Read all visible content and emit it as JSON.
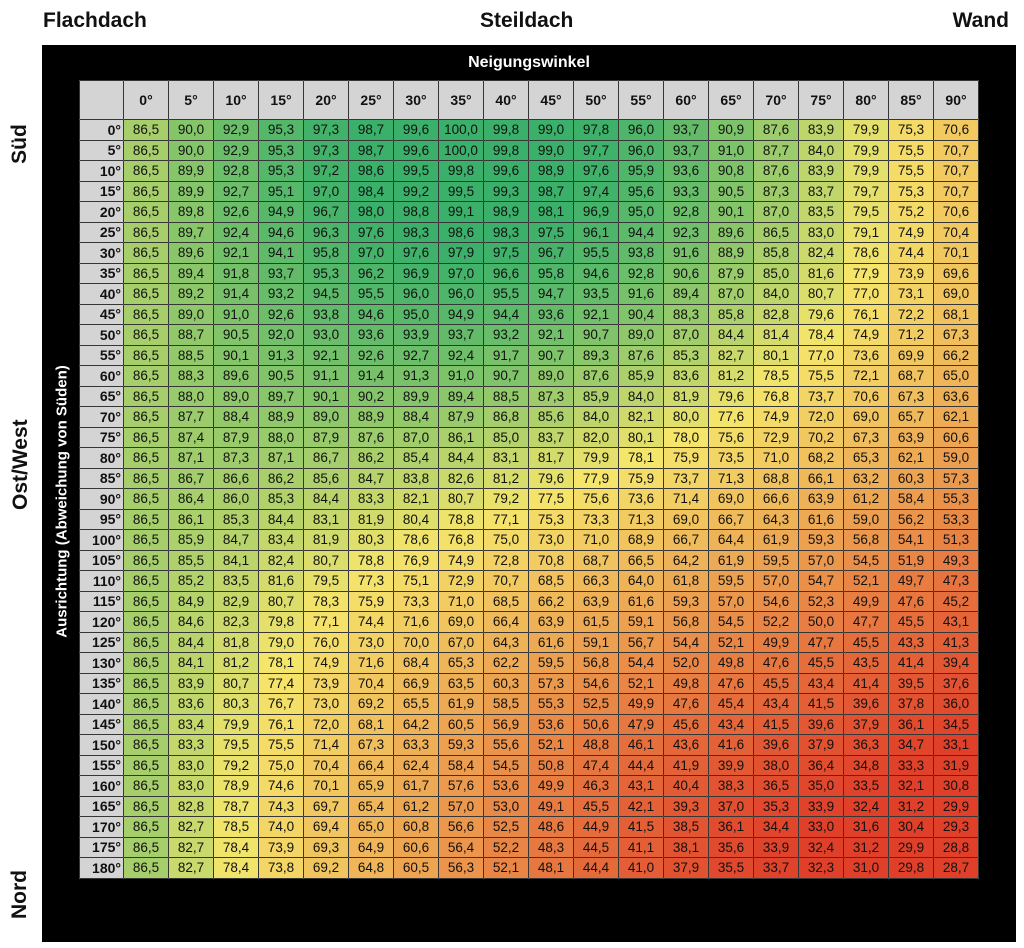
{
  "labels": {
    "flachdach": "Flachdach",
    "steildach": "Steildach",
    "wand": "Wand",
    "sued": "Süd",
    "ostwest": "Ost/West",
    "nord": "Nord",
    "header": "Neigungswinkel",
    "side": "Ausrichtung (Abweichung von Süden)"
  },
  "colors": {
    "high": "#3bb06a",
    "mid": "#f5e56b",
    "low": "#e0402a"
  },
  "chart_data": {
    "type": "heatmap",
    "columns": [
      "0°",
      "5°",
      "10°",
      "15°",
      "20°",
      "25°",
      "30°",
      "35°",
      "40°",
      "45°",
      "50°",
      "55°",
      "60°",
      "65°",
      "70°",
      "75°",
      "80°",
      "85°",
      "90°"
    ],
    "rows": [
      "0°",
      "5°",
      "10°",
      "15°",
      "20°",
      "25°",
      "30°",
      "35°",
      "40°",
      "45°",
      "50°",
      "55°",
      "60°",
      "65°",
      "70°",
      "75°",
      "80°",
      "85°",
      "90°",
      "95°",
      "100°",
      "105°",
      "110°",
      "115°",
      "120°",
      "125°",
      "130°",
      "135°",
      "140°",
      "145°",
      "150°",
      "155°",
      "160°",
      "165°",
      "170°",
      "175°",
      "180°"
    ],
    "values": [
      [
        "86,5",
        "90,0",
        "92,9",
        "95,3",
        "97,3",
        "98,7",
        "99,6",
        "100,0",
        "99,8",
        "99,0",
        "97,8",
        "96,0",
        "93,7",
        "90,9",
        "87,6",
        "83,9",
        "79,9",
        "75,3",
        "70,6"
      ],
      [
        "86,5",
        "90,0",
        "92,9",
        "95,3",
        "97,3",
        "98,7",
        "99,6",
        "100,0",
        "99,8",
        "99,0",
        "97,7",
        "96,0",
        "93,7",
        "91,0",
        "87,7",
        "84,0",
        "79,9",
        "75,5",
        "70,7"
      ],
      [
        "86,5",
        "89,9",
        "92,8",
        "95,3",
        "97,2",
        "98,6",
        "99,5",
        "99,8",
        "99,6",
        "98,9",
        "97,6",
        "95,9",
        "93,6",
        "90,8",
        "87,6",
        "83,9",
        "79,9",
        "75,5",
        "70,7"
      ],
      [
        "86,5",
        "89,9",
        "92,7",
        "95,1",
        "97,0",
        "98,4",
        "99,2",
        "99,5",
        "99,3",
        "98,7",
        "97,4",
        "95,6",
        "93,3",
        "90,5",
        "87,3",
        "83,7",
        "79,7",
        "75,3",
        "70,7"
      ],
      [
        "86,5",
        "89,8",
        "92,6",
        "94,9",
        "96,7",
        "98,0",
        "98,8",
        "99,1",
        "98,9",
        "98,1",
        "96,9",
        "95,0",
        "92,8",
        "90,1",
        "87,0",
        "83,5",
        "79,5",
        "75,2",
        "70,6"
      ],
      [
        "86,5",
        "89,7",
        "92,4",
        "94,6",
        "96,3",
        "97,6",
        "98,3",
        "98,6",
        "98,3",
        "97,5",
        "96,1",
        "94,4",
        "92,3",
        "89,6",
        "86,5",
        "83,0",
        "79,1",
        "74,9",
        "70,4"
      ],
      [
        "86,5",
        "89,6",
        "92,1",
        "94,1",
        "95,8",
        "97,0",
        "97,6",
        "97,9",
        "97,5",
        "96,7",
        "95,5",
        "93,8",
        "91,6",
        "88,9",
        "85,8",
        "82,4",
        "78,6",
        "74,4",
        "70,1"
      ],
      [
        "86,5",
        "89,4",
        "91,8",
        "93,7",
        "95,3",
        "96,2",
        "96,9",
        "97,0",
        "96,6",
        "95,8",
        "94,6",
        "92,8",
        "90,6",
        "87,9",
        "85,0",
        "81,6",
        "77,9",
        "73,9",
        "69,6"
      ],
      [
        "86,5",
        "89,2",
        "91,4",
        "93,2",
        "94,5",
        "95,5",
        "96,0",
        "96,0",
        "95,5",
        "94,7",
        "93,5",
        "91,6",
        "89,4",
        "87,0",
        "84,0",
        "80,7",
        "77,0",
        "73,1",
        "69,0"
      ],
      [
        "86,5",
        "89,0",
        "91,0",
        "92,6",
        "93,8",
        "94,6",
        "95,0",
        "94,9",
        "94,4",
        "93,6",
        "92,1",
        "90,4",
        "88,3",
        "85,8",
        "82,8",
        "79,6",
        "76,1",
        "72,2",
        "68,1"
      ],
      [
        "86,5",
        "88,7",
        "90,5",
        "92,0",
        "93,0",
        "93,6",
        "93,9",
        "93,7",
        "93,2",
        "92,1",
        "90,7",
        "89,0",
        "87,0",
        "84,4",
        "81,4",
        "78,4",
        "74,9",
        "71,2",
        "67,3"
      ],
      [
        "86,5",
        "88,5",
        "90,1",
        "91,3",
        "92,1",
        "92,6",
        "92,7",
        "92,4",
        "91,7",
        "90,7",
        "89,3",
        "87,6",
        "85,3",
        "82,7",
        "80,1",
        "77,0",
        "73,6",
        "69,9",
        "66,2"
      ],
      [
        "86,5",
        "88,3",
        "89,6",
        "90,5",
        "91,1",
        "91,4",
        "91,3",
        "91,0",
        "90,7",
        "89,0",
        "87,6",
        "85,9",
        "83,6",
        "81,2",
        "78,5",
        "75,5",
        "72,1",
        "68,7",
        "65,0"
      ],
      [
        "86,5",
        "88,0",
        "89,0",
        "89,7",
        "90,1",
        "90,2",
        "89,9",
        "89,4",
        "88,5",
        "87,3",
        "85,9",
        "84,0",
        "81,9",
        "79,6",
        "76,8",
        "73,7",
        "70,6",
        "67,3",
        "63,6"
      ],
      [
        "86,5",
        "87,7",
        "88,4",
        "88,9",
        "89,0",
        "88,9",
        "88,4",
        "87,9",
        "86,8",
        "85,6",
        "84,0",
        "82,1",
        "80,0",
        "77,6",
        "74,9",
        "72,0",
        "69,0",
        "65,7",
        "62,1"
      ],
      [
        "86,5",
        "87,4",
        "87,9",
        "88,0",
        "87,9",
        "87,6",
        "87,0",
        "86,1",
        "85,0",
        "83,7",
        "82,0",
        "80,1",
        "78,0",
        "75,6",
        "72,9",
        "70,2",
        "67,3",
        "63,9",
        "60,6"
      ],
      [
        "86,5",
        "87,1",
        "87,3",
        "87,1",
        "86,7",
        "86,2",
        "85,4",
        "84,4",
        "83,1",
        "81,7",
        "79,9",
        "78,1",
        "75,9",
        "73,5",
        "71,0",
        "68,2",
        "65,3",
        "62,1",
        "59,0"
      ],
      [
        "86,5",
        "86,7",
        "86,6",
        "86,2",
        "85,6",
        "84,7",
        "83,8",
        "82,6",
        "81,2",
        "79,6",
        "77,9",
        "75,9",
        "73,7",
        "71,3",
        "68,8",
        "66,1",
        "63,2",
        "60,3",
        "57,3"
      ],
      [
        "86,5",
        "86,4",
        "86,0",
        "85,3",
        "84,4",
        "83,3",
        "82,1",
        "80,7",
        "79,2",
        "77,5",
        "75,6",
        "73,6",
        "71,4",
        "69,0",
        "66,6",
        "63,9",
        "61,2",
        "58,4",
        "55,3"
      ],
      [
        "86,5",
        "86,1",
        "85,3",
        "84,4",
        "83,1",
        "81,9",
        "80,4",
        "78,8",
        "77,1",
        "75,3",
        "73,3",
        "71,3",
        "69,0",
        "66,7",
        "64,3",
        "61,6",
        "59,0",
        "56,2",
        "53,3"
      ],
      [
        "86,5",
        "85,9",
        "84,7",
        "83,4",
        "81,9",
        "80,3",
        "78,6",
        "76,8",
        "75,0",
        "73,0",
        "71,0",
        "68,9",
        "66,7",
        "64,4",
        "61,9",
        "59,3",
        "56,8",
        "54,1",
        "51,3"
      ],
      [
        "86,5",
        "85,5",
        "84,1",
        "82,4",
        "80,7",
        "78,8",
        "76,9",
        "74,9",
        "72,8",
        "70,8",
        "68,7",
        "66,5",
        "64,2",
        "61,9",
        "59,5",
        "57,0",
        "54,5",
        "51,9",
        "49,3"
      ],
      [
        "86,5",
        "85,2",
        "83,5",
        "81,6",
        "79,5",
        "77,3",
        "75,1",
        "72,9",
        "70,7",
        "68,5",
        "66,3",
        "64,0",
        "61,8",
        "59,5",
        "57,0",
        "54,7",
        "52,1",
        "49,7",
        "47,3"
      ],
      [
        "86,5",
        "84,9",
        "82,9",
        "80,7",
        "78,3",
        "75,9",
        "73,3",
        "71,0",
        "68,5",
        "66,2",
        "63,9",
        "61,6",
        "59,3",
        "57,0",
        "54,6",
        "52,3",
        "49,9",
        "47,6",
        "45,2"
      ],
      [
        "86,5",
        "84,6",
        "82,3",
        "79,8",
        "77,1",
        "74,4",
        "71,6",
        "69,0",
        "66,4",
        "63,9",
        "61,5",
        "59,1",
        "56,8",
        "54,5",
        "52,2",
        "50,0",
        "47,7",
        "45,5",
        "43,1"
      ],
      [
        "86,5",
        "84,4",
        "81,8",
        "79,0",
        "76,0",
        "73,0",
        "70,0",
        "67,0",
        "64,3",
        "61,6",
        "59,1",
        "56,7",
        "54,4",
        "52,1",
        "49,9",
        "47,7",
        "45,5",
        "43,3",
        "41,3"
      ],
      [
        "86,5",
        "84,1",
        "81,2",
        "78,1",
        "74,9",
        "71,6",
        "68,4",
        "65,3",
        "62,2",
        "59,5",
        "56,8",
        "54,4",
        "52,0",
        "49,8",
        "47,6",
        "45,5",
        "43,5",
        "41,4",
        "39,4"
      ],
      [
        "86,5",
        "83,9",
        "80,7",
        "77,4",
        "73,9",
        "70,4",
        "66,9",
        "63,5",
        "60,3",
        "57,3",
        "54,6",
        "52,1",
        "49,8",
        "47,6",
        "45,5",
        "43,4",
        "41,4",
        "39,5",
        "37,6"
      ],
      [
        "86,5",
        "83,6",
        "80,3",
        "76,7",
        "73,0",
        "69,2",
        "65,5",
        "61,9",
        "58,5",
        "55,3",
        "52,5",
        "49,9",
        "47,6",
        "45,4",
        "43,4",
        "41,5",
        "39,6",
        "37,8",
        "36,0"
      ],
      [
        "86,5",
        "83,4",
        "79,9",
        "76,1",
        "72,0",
        "68,1",
        "64,2",
        "60,5",
        "56,9",
        "53,6",
        "50,6",
        "47,9",
        "45,6",
        "43,4",
        "41,5",
        "39,6",
        "37,9",
        "36,1",
        "34,5"
      ],
      [
        "86,5",
        "83,3",
        "79,5",
        "75,5",
        "71,4",
        "67,3",
        "63,3",
        "59,3",
        "55,6",
        "52,1",
        "48,8",
        "46,1",
        "43,6",
        "41,6",
        "39,6",
        "37,9",
        "36,3",
        "34,7",
        "33,1"
      ],
      [
        "86,5",
        "83,0",
        "79,2",
        "75,0",
        "70,4",
        "66,4",
        "62,4",
        "58,4",
        "54,5",
        "50,8",
        "47,4",
        "44,4",
        "41,9",
        "39,9",
        "38,0",
        "36,4",
        "34,8",
        "33,3",
        "31,9"
      ],
      [
        "86,5",
        "83,0",
        "78,9",
        "74,6",
        "70,1",
        "65,9",
        "61,7",
        "57,6",
        "53,6",
        "49,9",
        "46,3",
        "43,1",
        "40,4",
        "38,3",
        "36,5",
        "35,0",
        "33,5",
        "32,1",
        "30,8"
      ],
      [
        "86,5",
        "82,8",
        "78,7",
        "74,3",
        "69,7",
        "65,4",
        "61,2",
        "57,0",
        "53,0",
        "49,1",
        "45,5",
        "42,1",
        "39,3",
        "37,0",
        "35,3",
        "33,9",
        "32,4",
        "31,2",
        "29,9"
      ],
      [
        "86,5",
        "82,7",
        "78,5",
        "74,0",
        "69,4",
        "65,0",
        "60,8",
        "56,6",
        "52,5",
        "48,6",
        "44,9",
        "41,5",
        "38,5",
        "36,1",
        "34,4",
        "33,0",
        "31,6",
        "30,4",
        "29,3"
      ],
      [
        "86,5",
        "82,7",
        "78,4",
        "73,9",
        "69,3",
        "64,9",
        "60,6",
        "56,4",
        "52,2",
        "48,3",
        "44,5",
        "41,1",
        "38,1",
        "35,6",
        "33,9",
        "32,4",
        "31,2",
        "29,9",
        "28,8"
      ],
      [
        "86,5",
        "82,7",
        "78,4",
        "73,8",
        "69,2",
        "64,8",
        "60,5",
        "56,3",
        "52,1",
        "48,1",
        "44,4",
        "41,0",
        "37,9",
        "35,5",
        "33,7",
        "32,3",
        "31,0",
        "29,8",
        "28,7"
      ]
    ]
  }
}
